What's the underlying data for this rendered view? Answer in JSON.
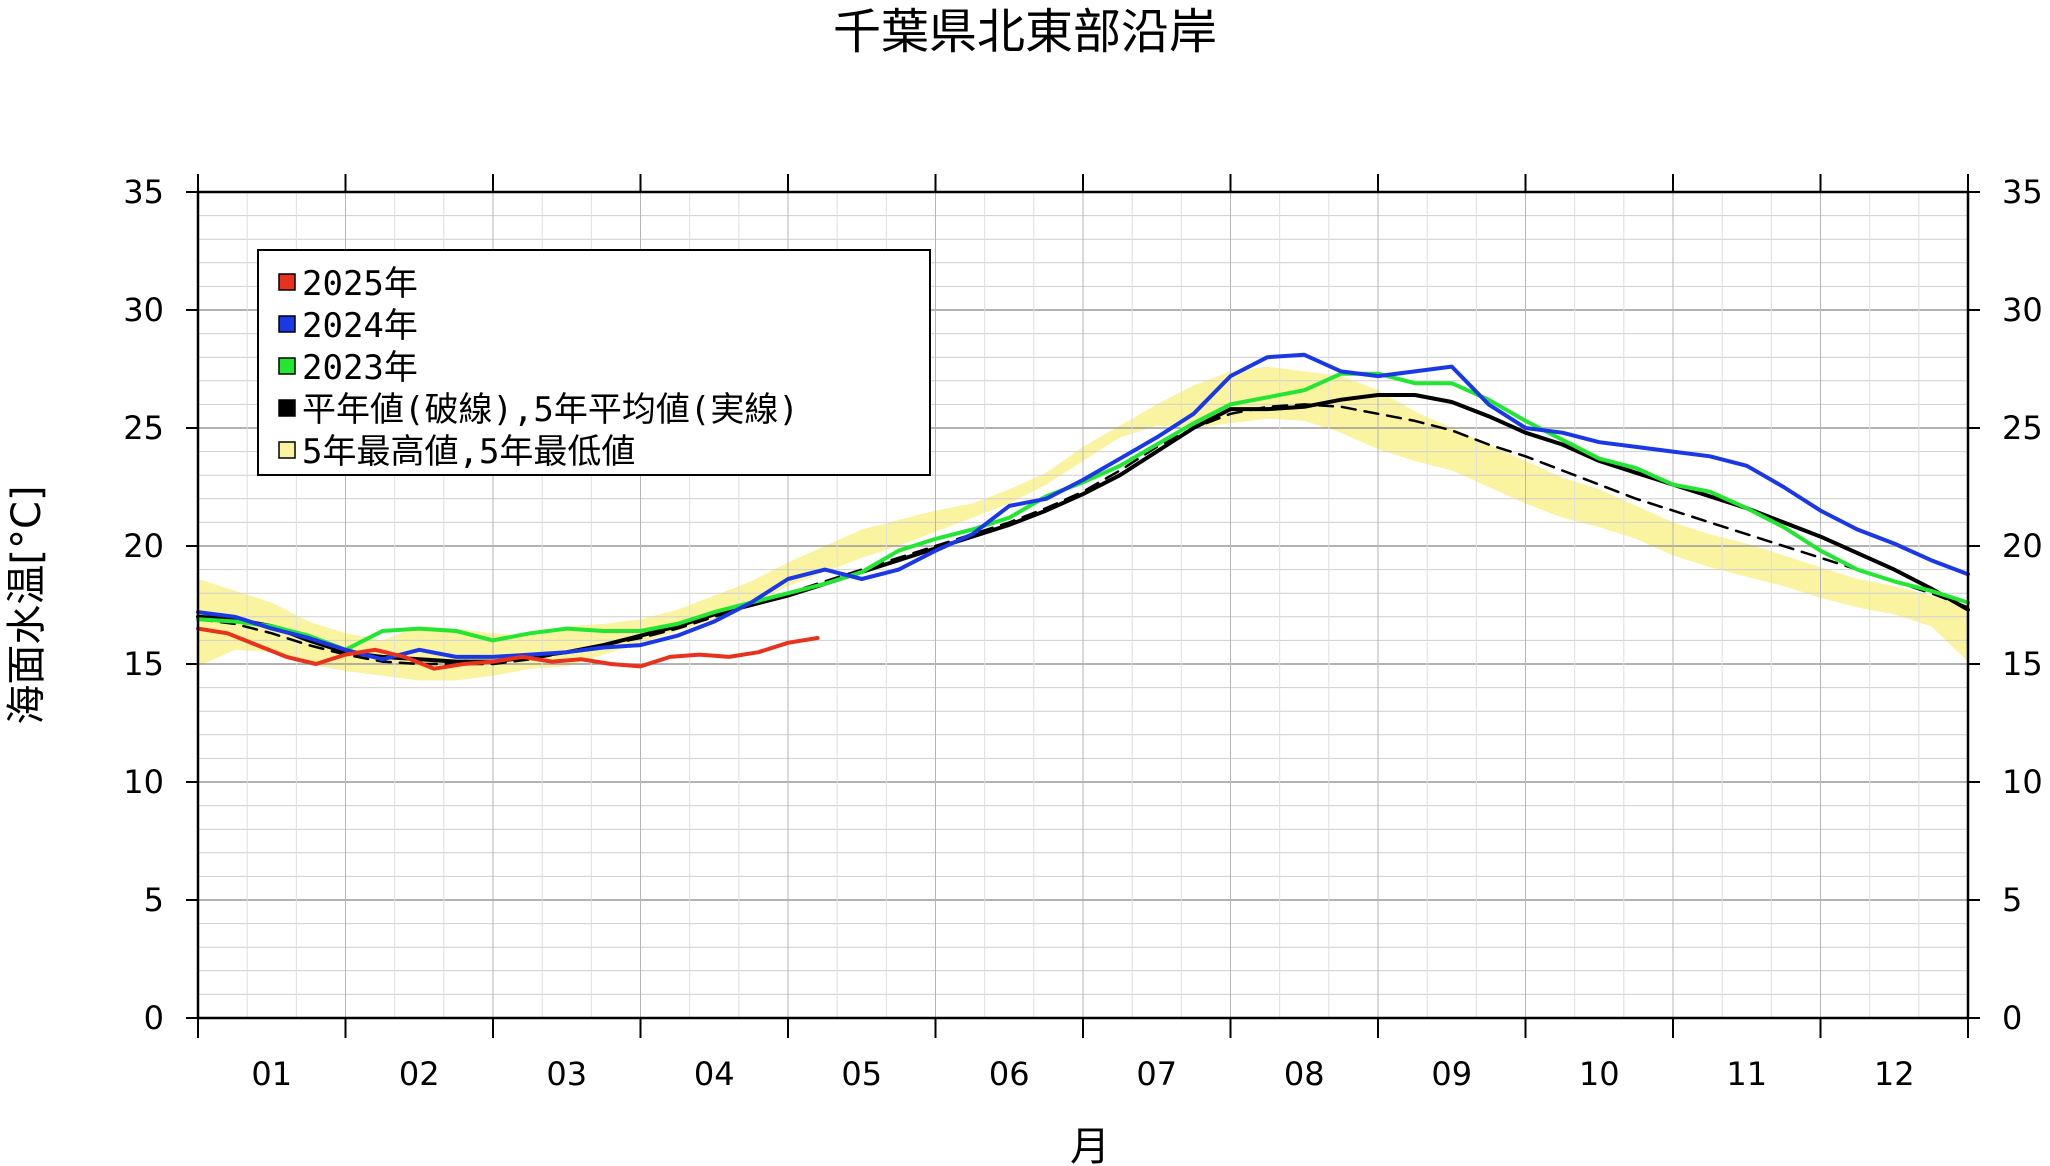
{
  "chart_data": {
    "type": "line",
    "title": "千葉県北東部沿岸",
    "xlabel": "月",
    "ylabel": "海面水温[°C]",
    "ylim": [
      0,
      35
    ],
    "yticks": [
      0,
      5,
      10,
      15,
      20,
      25,
      30,
      35
    ],
    "yticks_right": [
      0,
      5,
      10,
      15,
      20,
      25,
      30,
      35
    ],
    "xlim": [
      0,
      12
    ],
    "month_labels": [
      "01",
      "02",
      "03",
      "04",
      "05",
      "06",
      "07",
      "08",
      "09",
      "10",
      "11",
      "12"
    ],
    "grid": true,
    "legend_position": "top-left",
    "legend": [
      {
        "label": "2025年",
        "color": "#e8321e"
      },
      {
        "label": "2024年",
        "color": "#1a38e6"
      },
      {
        "label": "2023年",
        "color": "#22e632"
      },
      {
        "label": "平年値(破線),5年平均値(実線)",
        "color": "#000000"
      },
      {
        "label": "5年最高値,5年最低値",
        "color": "#faf3a0"
      }
    ],
    "band": {
      "color": "#faf3a0",
      "x": [
        0.0,
        0.25,
        0.5,
        0.75,
        1.0,
        1.25,
        1.5,
        1.75,
        2.0,
        2.25,
        2.5,
        2.75,
        3.0,
        3.25,
        3.5,
        3.75,
        4.0,
        4.25,
        4.5,
        4.75,
        5.0,
        5.25,
        5.5,
        5.75,
        6.0,
        6.25,
        6.5,
        6.75,
        7.0,
        7.25,
        7.5,
        7.75,
        8.0,
        8.25,
        8.5,
        8.75,
        9.0,
        9.25,
        9.5,
        9.75,
        10.0,
        10.25,
        10.5,
        10.75,
        11.0,
        11.25,
        11.5,
        11.75,
        12.0
      ],
      "high": [
        18.6,
        18.1,
        17.6,
        16.8,
        16.3,
        16.0,
        16.6,
        16.5,
        16.3,
        16.2,
        16.6,
        16.7,
        16.9,
        17.3,
        17.9,
        18.5,
        19.3,
        20.0,
        20.7,
        21.1,
        21.5,
        21.8,
        22.4,
        23.1,
        24.2,
        25.1,
        26.0,
        26.8,
        27.4,
        27.6,
        27.4,
        27.2,
        26.6,
        25.7,
        25.0,
        24.3,
        23.6,
        22.9,
        22.4,
        21.7,
        21.0,
        20.5,
        20.1,
        19.6,
        19.1,
        18.6,
        18.3,
        17.9,
        17.4
      ],
      "low": [
        14.9,
        15.6,
        15.5,
        15.0,
        14.7,
        14.5,
        14.3,
        14.3,
        14.5,
        14.8,
        14.9,
        15.4,
        15.9,
        16.4,
        16.9,
        17.5,
        18.3,
        18.9,
        19.5,
        20.0,
        20.6,
        21.2,
        21.8,
        22.6,
        23.6,
        24.6,
        25.1,
        25.0,
        25.2,
        25.4,
        25.3,
        24.8,
        24.1,
        23.6,
        23.2,
        22.5,
        21.8,
        21.2,
        20.8,
        20.3,
        19.6,
        19.1,
        18.7,
        18.3,
        17.8,
        17.4,
        17.1,
        16.6,
        15.1
      ]
    },
    "series": [
      {
        "name": "2025年",
        "color": "#e8321e",
        "x": [
          0.0,
          0.2,
          0.4,
          0.6,
          0.8,
          1.0,
          1.2,
          1.4,
          1.6,
          1.8,
          2.0,
          2.2,
          2.4,
          2.6,
          2.8,
          3.0,
          3.2,
          3.4,
          3.6,
          3.8,
          4.0,
          4.2
        ],
        "values": [
          16.5,
          16.3,
          15.8,
          15.3,
          15.0,
          15.4,
          15.6,
          15.3,
          14.8,
          15.0,
          15.1,
          15.3,
          15.1,
          15.2,
          15.0,
          14.9,
          15.3,
          15.4,
          15.3,
          15.5,
          15.9,
          16.1
        ]
      },
      {
        "name": "2024年",
        "color": "#1a38e6",
        "x": [
          0.0,
          0.25,
          0.5,
          0.75,
          1.0,
          1.25,
          1.5,
          1.75,
          2.0,
          2.25,
          2.5,
          2.75,
          3.0,
          3.25,
          3.5,
          3.75,
          4.0,
          4.25,
          4.5,
          4.75,
          5.0,
          5.25,
          5.5,
          5.75,
          6.0,
          6.25,
          6.5,
          6.75,
          7.0,
          7.25,
          7.5,
          7.75,
          8.0,
          8.25,
          8.5,
          8.75,
          9.0,
          9.25,
          9.5,
          9.75,
          10.0,
          10.25,
          10.5,
          10.75,
          11.0,
          11.25,
          11.5,
          11.75,
          12.0
        ],
        "values": [
          17.2,
          17.0,
          16.5,
          16.1,
          15.6,
          15.2,
          15.6,
          15.3,
          15.3,
          15.4,
          15.5,
          15.7,
          15.8,
          16.2,
          16.8,
          17.6,
          18.6,
          19.0,
          18.6,
          19.0,
          19.8,
          20.5,
          21.7,
          22.0,
          22.8,
          23.7,
          24.6,
          25.6,
          27.2,
          28.0,
          28.1,
          27.4,
          27.2,
          27.4,
          27.6,
          26.0,
          25.0,
          24.8,
          24.4,
          24.2,
          24.0,
          23.8,
          23.4,
          22.5,
          21.5,
          20.7,
          20.1,
          19.4,
          18.8
        ]
      },
      {
        "name": "2023年",
        "color": "#22e632",
        "x": [
          0.0,
          0.25,
          0.5,
          0.75,
          1.0,
          1.25,
          1.5,
          1.75,
          2.0,
          2.25,
          2.5,
          2.75,
          3.0,
          3.25,
          3.5,
          3.75,
          4.0,
          4.25,
          4.5,
          4.75,
          5.0,
          5.25,
          5.5,
          5.75,
          6.0,
          6.25,
          6.5,
          6.75,
          7.0,
          7.25,
          7.5,
          7.75,
          8.0,
          8.25,
          8.5,
          8.75,
          9.0,
          9.25,
          9.5,
          9.75,
          10.0,
          10.25,
          10.5,
          10.75,
          11.0,
          11.25,
          11.5,
          11.75,
          12.0
        ],
        "values": [
          16.9,
          16.8,
          16.6,
          16.2,
          15.6,
          16.4,
          16.5,
          16.4,
          16.0,
          16.3,
          16.5,
          16.4,
          16.4,
          16.7,
          17.2,
          17.6,
          18.0,
          18.4,
          18.9,
          19.8,
          20.3,
          20.7,
          21.2,
          22.1,
          22.7,
          23.4,
          24.3,
          25.2,
          26.0,
          26.3,
          26.6,
          27.3,
          27.3,
          26.9,
          26.9,
          26.2,
          25.3,
          24.5,
          23.7,
          23.3,
          22.6,
          22.3,
          21.6,
          20.8,
          19.8,
          19.0,
          18.5,
          18.1,
          17.6
        ]
      },
      {
        "name": "5年平均値",
        "color": "#000000",
        "dash": false,
        "x": [
          0.0,
          0.25,
          0.5,
          0.75,
          1.0,
          1.25,
          1.5,
          1.75,
          2.0,
          2.25,
          2.5,
          2.75,
          3.0,
          3.25,
          3.5,
          3.75,
          4.0,
          4.25,
          4.5,
          4.75,
          5.0,
          5.25,
          5.5,
          5.75,
          6.0,
          6.25,
          6.5,
          6.75,
          7.0,
          7.25,
          7.5,
          7.75,
          8.0,
          8.25,
          8.5,
          8.75,
          9.0,
          9.25,
          9.5,
          9.75,
          10.0,
          10.25,
          10.5,
          10.75,
          11.0,
          11.25,
          11.5,
          11.75,
          12.0
        ],
        "values": [
          17.0,
          16.9,
          16.6,
          16.0,
          15.5,
          15.3,
          15.2,
          15.1,
          15.1,
          15.3,
          15.5,
          15.8,
          16.2,
          16.6,
          17.1,
          17.5,
          17.9,
          18.4,
          18.9,
          19.4,
          19.9,
          20.4,
          20.9,
          21.5,
          22.2,
          23.0,
          24.0,
          25.0,
          25.8,
          25.8,
          25.9,
          26.2,
          26.4,
          26.4,
          26.1,
          25.5,
          24.8,
          24.3,
          23.6,
          23.1,
          22.6,
          22.1,
          21.6,
          21.0,
          20.4,
          19.7,
          19.0,
          18.2,
          17.3
        ]
      },
      {
        "name": "平年値",
        "color": "#000000",
        "dash": true,
        "x": [
          0.0,
          0.25,
          0.5,
          0.75,
          1.0,
          1.25,
          1.5,
          1.75,
          2.0,
          2.25,
          2.5,
          2.75,
          3.0,
          3.25,
          3.5,
          3.75,
          4.0,
          4.25,
          4.5,
          4.75,
          5.0,
          5.25,
          5.5,
          5.75,
          6.0,
          6.25,
          6.5,
          6.75,
          7.0,
          7.25,
          7.5,
          7.75,
          8.0,
          8.25,
          8.5,
          8.75,
          9.0,
          9.25,
          9.5,
          9.75,
          10.0,
          10.25,
          10.5,
          10.75,
          11.0,
          11.25,
          11.5,
          11.75,
          12.0
        ],
        "values": [
          16.9,
          16.7,
          16.3,
          15.8,
          15.4,
          15.1,
          15.0,
          15.0,
          15.0,
          15.2,
          15.5,
          15.8,
          16.1,
          16.5,
          17.0,
          17.5,
          18.0,
          18.5,
          19.0,
          19.5,
          20.0,
          20.5,
          21.0,
          21.6,
          22.3,
          23.2,
          24.2,
          25.0,
          25.6,
          25.9,
          26.0,
          25.9,
          25.6,
          25.3,
          24.9,
          24.3,
          23.8,
          23.2,
          22.6,
          22.0,
          21.5,
          21.0,
          20.5,
          20.0,
          19.5,
          19.0,
          18.5,
          18.0,
          17.4
        ]
      }
    ]
  }
}
